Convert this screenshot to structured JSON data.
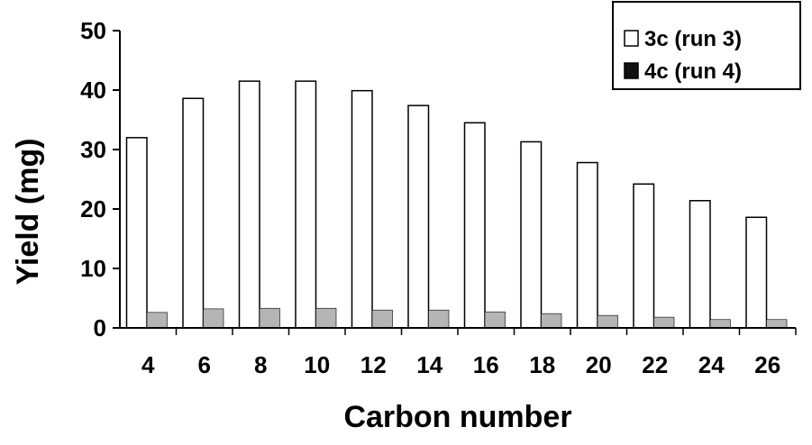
{
  "chart_data": {
    "type": "bar",
    "xlabel": "Carbon number",
    "ylabel": "Yield (mg)",
    "ylim": [
      0,
      50
    ],
    "yticks": [
      0,
      10,
      20,
      30,
      40,
      50
    ],
    "categories": [
      "4",
      "6",
      "8",
      "10",
      "12",
      "14",
      "16",
      "18",
      "20",
      "22",
      "24",
      "26"
    ],
    "series": [
      {
        "name": "3c (run 3)",
        "color": "#ffffff",
        "values": [
          32.0,
          38.6,
          41.5,
          41.5,
          39.9,
          37.4,
          34.5,
          31.3,
          27.8,
          24.2,
          21.4,
          18.6
        ]
      },
      {
        "name": "4c (run 4)",
        "color": "#b5b5b5",
        "legend_color": "#111111",
        "values": [
          2.6,
          3.2,
          3.3,
          3.3,
          3.0,
          3.0,
          2.7,
          2.4,
          2.1,
          1.8,
          1.4,
          1.4
        ]
      }
    ],
    "grid": false,
    "legend_position": "top-right"
  }
}
